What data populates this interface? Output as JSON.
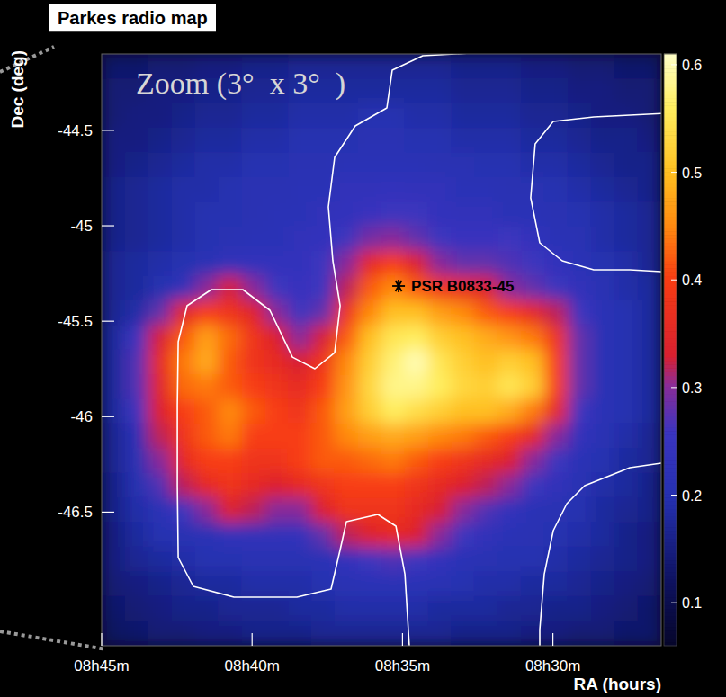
{
  "chart_data": {
    "type": "heatmap",
    "title": "Parkes radio map",
    "annotations": [
      "Zoom (3°  x 3°  )"
    ],
    "x_label": "RA (hours)",
    "y_label": "Dec (deg)",
    "xlim": [
      8.75,
      8.44
    ],
    "xticks": [
      {
        "value": 8.75,
        "label": "08h45m"
      },
      {
        "value": 8.666667,
        "label": "08h40m"
      },
      {
        "value": 8.583333,
        "label": "08h35m"
      },
      {
        "value": 8.5,
        "label": "08h30m"
      }
    ],
    "ylim": [
      -47.2,
      -44.1
    ],
    "yticks": [
      -46.5,
      -46,
      -45.5,
      -45,
      -44.5
    ],
    "color_range": [
      0.06,
      0.61
    ],
    "color_ticks": [
      0.1,
      0.2,
      0.3,
      0.4,
      0.5,
      0.6
    ],
    "cells": [
      [
        0.13,
        0.13,
        0.14,
        0.14,
        0.15,
        0.15,
        0.16,
        0.16,
        0.17,
        0.17,
        0.17,
        0.17,
        0.17,
        0.17,
        0.17,
        0.16,
        0.16,
        0.16,
        0.15,
        0.15,
        0.14,
        0.14,
        0.13,
        0.13
      ],
      [
        0.14,
        0.14,
        0.15,
        0.15,
        0.16,
        0.16,
        0.17,
        0.17,
        0.18,
        0.18,
        0.18,
        0.18,
        0.18,
        0.18,
        0.18,
        0.17,
        0.17,
        0.17,
        0.16,
        0.16,
        0.15,
        0.15,
        0.14,
        0.14
      ],
      [
        0.14,
        0.15,
        0.15,
        0.16,
        0.17,
        0.17,
        0.18,
        0.18,
        0.19,
        0.19,
        0.19,
        0.2,
        0.2,
        0.19,
        0.19,
        0.18,
        0.18,
        0.18,
        0.17,
        0.17,
        0.16,
        0.15,
        0.15,
        0.14
      ],
      [
        0.15,
        0.15,
        0.16,
        0.17,
        0.18,
        0.18,
        0.19,
        0.19,
        0.2,
        0.2,
        0.2,
        0.21,
        0.21,
        0.2,
        0.2,
        0.19,
        0.19,
        0.19,
        0.18,
        0.18,
        0.17,
        0.16,
        0.16,
        0.15
      ],
      [
        0.15,
        0.16,
        0.17,
        0.18,
        0.19,
        0.19,
        0.2,
        0.2,
        0.21,
        0.21,
        0.22,
        0.22,
        0.22,
        0.22,
        0.21,
        0.21,
        0.2,
        0.2,
        0.19,
        0.19,
        0.18,
        0.17,
        0.16,
        0.16
      ],
      [
        0.16,
        0.17,
        0.18,
        0.19,
        0.19,
        0.2,
        0.21,
        0.21,
        0.22,
        0.22,
        0.23,
        0.23,
        0.24,
        0.23,
        0.23,
        0.22,
        0.22,
        0.21,
        0.21,
        0.2,
        0.19,
        0.18,
        0.17,
        0.16
      ],
      [
        0.16,
        0.17,
        0.18,
        0.19,
        0.2,
        0.2,
        0.21,
        0.22,
        0.22,
        0.23,
        0.24,
        0.25,
        0.26,
        0.26,
        0.24,
        0.23,
        0.23,
        0.22,
        0.22,
        0.21,
        0.2,
        0.19,
        0.18,
        0.17
      ],
      [
        0.16,
        0.17,
        0.18,
        0.19,
        0.2,
        0.21,
        0.22,
        0.22,
        0.23,
        0.24,
        0.26,
        0.29,
        0.3,
        0.28,
        0.26,
        0.25,
        0.25,
        0.26,
        0.24,
        0.22,
        0.21,
        0.19,
        0.18,
        0.17
      ],
      [
        0.17,
        0.18,
        0.19,
        0.2,
        0.22,
        0.23,
        0.24,
        0.24,
        0.24,
        0.26,
        0.3,
        0.36,
        0.4,
        0.34,
        0.3,
        0.28,
        0.28,
        0.27,
        0.26,
        0.24,
        0.22,
        0.2,
        0.19,
        0.17
      ],
      [
        0.17,
        0.18,
        0.2,
        0.23,
        0.3,
        0.33,
        0.3,
        0.26,
        0.25,
        0.26,
        0.32,
        0.42,
        0.45,
        0.42,
        0.38,
        0.36,
        0.34,
        0.3,
        0.28,
        0.26,
        0.23,
        0.21,
        0.19,
        0.18
      ],
      [
        0.17,
        0.19,
        0.28,
        0.35,
        0.4,
        0.38,
        0.35,
        0.3,
        0.26,
        0.28,
        0.38,
        0.45,
        0.5,
        0.5,
        0.47,
        0.45,
        0.42,
        0.4,
        0.36,
        0.32,
        0.26,
        0.22,
        0.2,
        0.18
      ],
      [
        0.18,
        0.26,
        0.33,
        0.42,
        0.47,
        0.43,
        0.38,
        0.34,
        0.3,
        0.33,
        0.42,
        0.5,
        0.55,
        0.56,
        0.52,
        0.5,
        0.48,
        0.46,
        0.44,
        0.38,
        0.28,
        0.22,
        0.2,
        0.18
      ],
      [
        0.18,
        0.27,
        0.36,
        0.44,
        0.48,
        0.42,
        0.38,
        0.36,
        0.33,
        0.38,
        0.45,
        0.52,
        0.57,
        0.6,
        0.55,
        0.52,
        0.5,
        0.52,
        0.5,
        0.4,
        0.28,
        0.22,
        0.2,
        0.18
      ],
      [
        0.18,
        0.27,
        0.35,
        0.43,
        0.44,
        0.42,
        0.4,
        0.38,
        0.36,
        0.4,
        0.46,
        0.53,
        0.58,
        0.58,
        0.56,
        0.53,
        0.52,
        0.55,
        0.52,
        0.4,
        0.28,
        0.22,
        0.2,
        0.18
      ],
      [
        0.18,
        0.26,
        0.34,
        0.4,
        0.42,
        0.45,
        0.42,
        0.4,
        0.38,
        0.42,
        0.47,
        0.52,
        0.56,
        0.54,
        0.52,
        0.5,
        0.5,
        0.48,
        0.44,
        0.36,
        0.26,
        0.22,
        0.2,
        0.18
      ],
      [
        0.17,
        0.22,
        0.32,
        0.38,
        0.42,
        0.44,
        0.4,
        0.4,
        0.4,
        0.42,
        0.45,
        0.47,
        0.48,
        0.47,
        0.45,
        0.44,
        0.42,
        0.4,
        0.36,
        0.3,
        0.24,
        0.21,
        0.19,
        0.17
      ],
      [
        0.17,
        0.21,
        0.3,
        0.36,
        0.4,
        0.4,
        0.38,
        0.38,
        0.4,
        0.42,
        0.42,
        0.43,
        0.44,
        0.42,
        0.4,
        0.38,
        0.36,
        0.34,
        0.3,
        0.26,
        0.22,
        0.2,
        0.18,
        0.17
      ],
      [
        0.16,
        0.2,
        0.27,
        0.32,
        0.36,
        0.38,
        0.36,
        0.34,
        0.36,
        0.38,
        0.4,
        0.4,
        0.4,
        0.38,
        0.36,
        0.34,
        0.32,
        0.3,
        0.26,
        0.23,
        0.21,
        0.19,
        0.18,
        0.16
      ],
      [
        0.16,
        0.19,
        0.22,
        0.26,
        0.3,
        0.34,
        0.32,
        0.3,
        0.3,
        0.34,
        0.38,
        0.38,
        0.38,
        0.36,
        0.33,
        0.3,
        0.27,
        0.24,
        0.22,
        0.21,
        0.2,
        0.18,
        0.17,
        0.16
      ],
      [
        0.15,
        0.18,
        0.2,
        0.21,
        0.22,
        0.23,
        0.23,
        0.23,
        0.24,
        0.28,
        0.32,
        0.34,
        0.36,
        0.34,
        0.3,
        0.26,
        0.23,
        0.22,
        0.21,
        0.2,
        0.19,
        0.18,
        0.16,
        0.15
      ],
      [
        0.15,
        0.17,
        0.18,
        0.19,
        0.2,
        0.2,
        0.21,
        0.21,
        0.21,
        0.22,
        0.24,
        0.26,
        0.27,
        0.26,
        0.24,
        0.22,
        0.21,
        0.2,
        0.2,
        0.19,
        0.18,
        0.17,
        0.16,
        0.15
      ],
      [
        0.14,
        0.15,
        0.16,
        0.17,
        0.18,
        0.18,
        0.19,
        0.19,
        0.19,
        0.2,
        0.21,
        0.22,
        0.22,
        0.22,
        0.21,
        0.2,
        0.19,
        0.19,
        0.18,
        0.18,
        0.17,
        0.16,
        0.15,
        0.14
      ],
      [
        0.13,
        0.14,
        0.15,
        0.16,
        0.16,
        0.17,
        0.17,
        0.17,
        0.18,
        0.18,
        0.19,
        0.19,
        0.19,
        0.19,
        0.18,
        0.18,
        0.18,
        0.17,
        0.17,
        0.16,
        0.16,
        0.15,
        0.14,
        0.13
      ],
      [
        0.12,
        0.13,
        0.14,
        0.14,
        0.15,
        0.15,
        0.16,
        0.16,
        0.16,
        0.17,
        0.17,
        0.17,
        0.17,
        0.17,
        0.17,
        0.16,
        0.16,
        0.16,
        0.15,
        0.15,
        0.14,
        0.14,
        0.13,
        0.13
      ]
    ],
    "contours": [
      [
        [
          8.4275,
          -44.0529
        ],
        [
          8.4624,
          -44.0623
        ],
        [
          8.4973,
          -44.0764
        ],
        [
          8.5372,
          -44.0906
        ],
        [
          8.5721,
          -44.1094
        ],
        [
          8.589,
          -44.1848
        ],
        [
          8.592,
          -44.3827
        ],
        [
          8.6095,
          -44.4769
        ],
        [
          8.6209,
          -44.6418
        ],
        [
          8.6244,
          -44.9009
        ],
        [
          8.6219,
          -45.1836
        ],
        [
          8.6179,
          -45.4191
        ],
        [
          8.6209,
          -45.6647
        ],
        [
          8.6319,
          -45.7489
        ],
        [
          8.6443,
          -45.6883
        ],
        [
          8.6568,
          -45.4427
        ],
        [
          8.6718,
          -45.3343
        ],
        [
          8.6892,
          -45.3343
        ],
        [
          8.7027,
          -45.4191
        ],
        [
          8.7076,
          -45.6076
        ],
        [
          8.7081,
          -45.9374
        ],
        [
          8.7081,
          -46.3614
        ],
        [
          8.7076,
          -46.7383
        ],
        [
          8.6992,
          -46.889
        ],
        [
          8.6767,
          -46.9456
        ],
        [
          8.6418,
          -46.9456
        ],
        [
          8.6229,
          -46.9032
        ],
        [
          8.6179,
          -46.6973
        ],
        [
          8.6144,
          -46.5498
        ],
        [
          8.597,
          -46.5121
        ],
        [
          8.587,
          -46.5734
        ],
        [
          8.582,
          -46.825
        ],
        [
          8.5795,
          -47.2094
        ],
        [
          8.5795,
          -47.3
        ]
      ],
      [
        [
          8.4275,
          -44.4062
        ],
        [
          8.4574,
          -44.4204
        ],
        [
          8.4774,
          -44.4298
        ],
        [
          8.4998,
          -44.4534
        ],
        [
          8.5098,
          -44.5711
        ],
        [
          8.5123,
          -44.8538
        ],
        [
          8.5073,
          -45.0894
        ],
        [
          8.4948,
          -45.1836
        ],
        [
          8.4774,
          -45.2307
        ],
        [
          8.4574,
          -45.2307
        ],
        [
          8.44,
          -45.2401
        ],
        [
          8.4275,
          -45.2401
        ]
      ],
      [
        [
          8.5073,
          -47.3
        ],
        [
          8.5073,
          -47.1152
        ],
        [
          8.5048,
          -46.825
        ],
        [
          8.4998,
          -46.5969
        ],
        [
          8.4923,
          -46.4556
        ],
        [
          8.4824,
          -46.3614
        ],
        [
          8.4574,
          -46.2672
        ],
        [
          8.44,
          -46.2436
        ],
        [
          8.4275,
          -46.2436
        ]
      ]
    ],
    "points": [
      {
        "label": "PSR B0833-45",
        "x": 8.5855,
        "y": -45.3155,
        "marker": "star"
      }
    ]
  }
}
